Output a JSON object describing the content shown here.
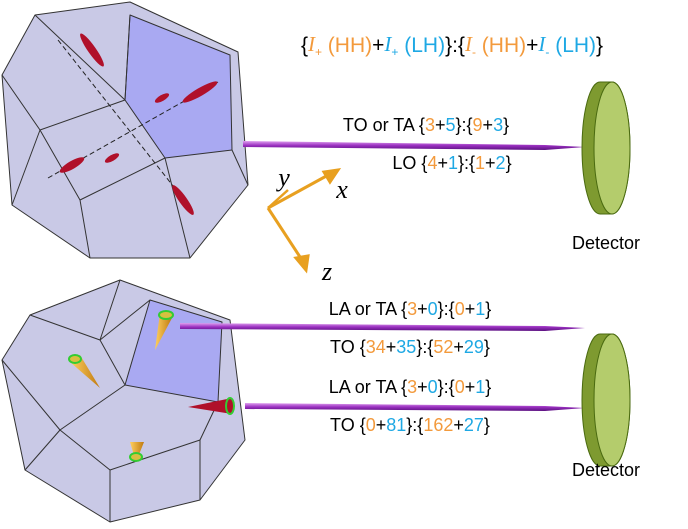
{
  "header": {
    "segments": [
      {
        "text": "{"
      },
      {
        "text": "I",
        "sub": "+",
        "color": "#f39a3c",
        "italic": true
      },
      {
        "text": " (HH)",
        "color": "#f39a3c"
      },
      {
        "text": "+"
      },
      {
        "text": "I",
        "sub": "+",
        "color": "#1ea8e4",
        "italic": true
      },
      {
        "text": " (LH)",
        "color": "#1ea8e4"
      },
      {
        "text": "}:{"
      },
      {
        "text": "I",
        "sub": "-",
        "color": "#f39a3c",
        "italic": true
      },
      {
        "text": " (HH)",
        "color": "#f39a3c"
      },
      {
        "text": "+"
      },
      {
        "text": "I",
        "sub": "-",
        "color": "#1ea8e4",
        "italic": true
      },
      {
        "text": " (LH)",
        "color": "#1ea8e4"
      },
      {
        "text": "}"
      }
    ]
  },
  "beams": [
    {
      "upper": [
        {
          "text": "TO or TA {"
        },
        {
          "text": "3",
          "color": "#f39a3c"
        },
        {
          "text": "+"
        },
        {
          "text": "5",
          "color": "#1ea8e4"
        },
        {
          "text": "}:{"
        },
        {
          "text": "9",
          "color": "#f39a3c"
        },
        {
          "text": "+"
        },
        {
          "text": "3",
          "color": "#1ea8e4"
        },
        {
          "text": "}"
        }
      ],
      "lower": [
        {
          "text": "LO {"
        },
        {
          "text": "4",
          "color": "#f39a3c"
        },
        {
          "text": "+"
        },
        {
          "text": "1",
          "color": "#1ea8e4"
        },
        {
          "text": "}:{"
        },
        {
          "text": "1",
          "color": "#f39a3c"
        },
        {
          "text": "+"
        },
        {
          "text": "2",
          "color": "#1ea8e4"
        },
        {
          "text": "}"
        }
      ]
    },
    {
      "upper": [
        {
          "text": "LA or TA {"
        },
        {
          "text": "3",
          "color": "#f39a3c"
        },
        {
          "text": "+"
        },
        {
          "text": "0",
          "color": "#1ea8e4"
        },
        {
          "text": "}:{"
        },
        {
          "text": "0",
          "color": "#f39a3c"
        },
        {
          "text": "+"
        },
        {
          "text": "1",
          "color": "#1ea8e4"
        },
        {
          "text": "}"
        }
      ],
      "lower": [
        {
          "text": "TO {"
        },
        {
          "text": "34",
          "color": "#f39a3c"
        },
        {
          "text": "+"
        },
        {
          "text": "35",
          "color": "#1ea8e4"
        },
        {
          "text": "}:{"
        },
        {
          "text": "52",
          "color": "#f39a3c"
        },
        {
          "text": "+"
        },
        {
          "text": "29",
          "color": "#1ea8e4"
        },
        {
          "text": "}"
        }
      ]
    },
    {
      "upper": [
        {
          "text": "LA or TA {"
        },
        {
          "text": "3",
          "color": "#f39a3c"
        },
        {
          "text": "+"
        },
        {
          "text": "0",
          "color": "#1ea8e4"
        },
        {
          "text": "}:{"
        },
        {
          "text": "0",
          "color": "#f39a3c"
        },
        {
          "text": "+"
        },
        {
          "text": "1",
          "color": "#1ea8e4"
        },
        {
          "text": "}"
        }
      ],
      "lower": [
        {
          "text": "TO {"
        },
        {
          "text": "0",
          "color": "#f39a3c"
        },
        {
          "text": "+"
        },
        {
          "text": "81",
          "color": "#1ea8e4"
        },
        {
          "text": "}:{"
        },
        {
          "text": "162",
          "color": "#f39a3c"
        },
        {
          "text": "+"
        },
        {
          "text": "27",
          "color": "#1ea8e4"
        },
        {
          "text": "}"
        }
      ]
    }
  ],
  "detectors": [
    "Detector",
    "Detector"
  ],
  "axes": {
    "x": "x",
    "y": "y",
    "z": "z"
  }
}
